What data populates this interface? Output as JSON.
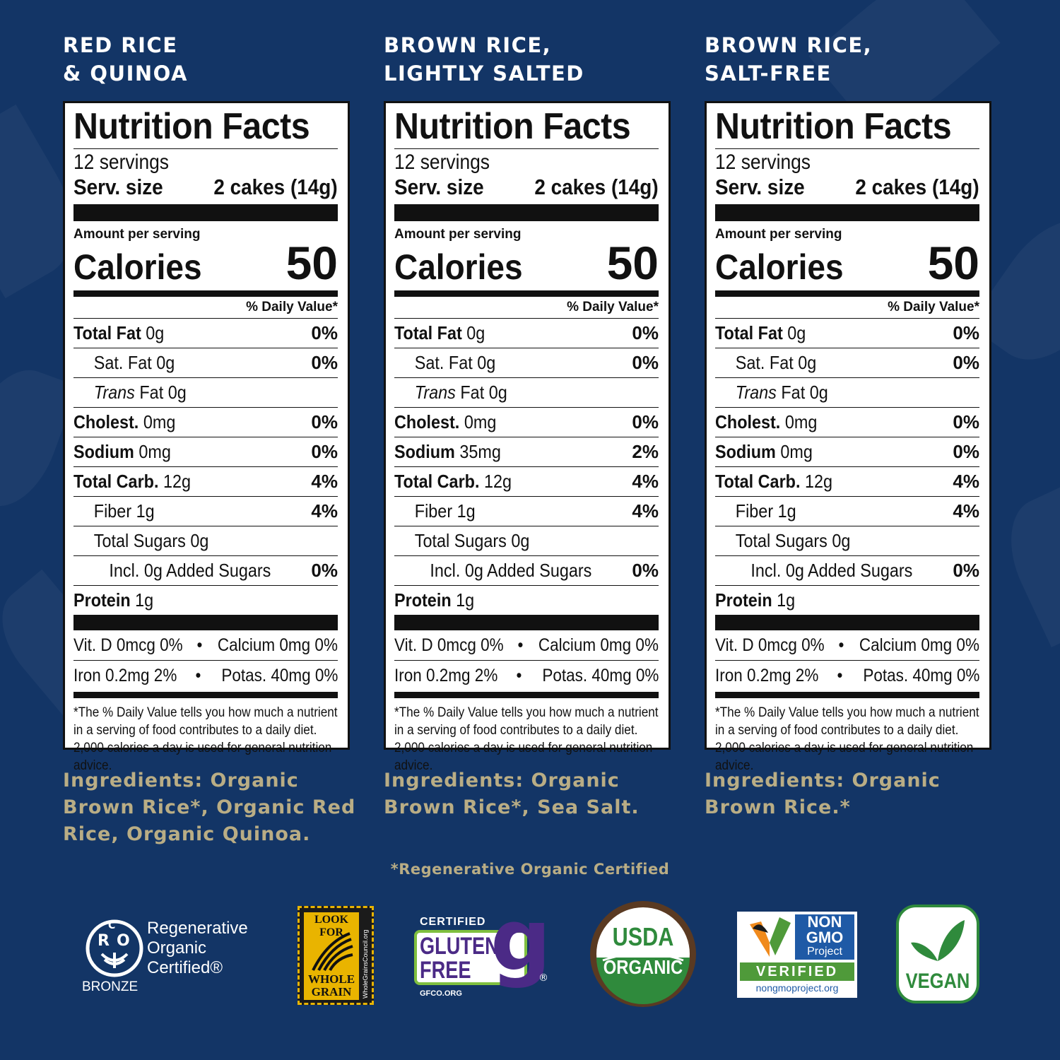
{
  "footnote": "*Regenerative Organic Certified",
  "labels": [
    {
      "title": "RED RICE\n& QUINOA",
      "ingredients": "Ingredients: Organic Brown Rice*, Organic Red Rice, Organic Quinoa.",
      "sodium": "0mg",
      "sodium_dv": "0%"
    },
    {
      "title": "BROWN RICE,\nLIGHTLY SALTED",
      "ingredients": "Ingredients: Organic Brown Rice*, Sea Salt.",
      "sodium": "35mg",
      "sodium_dv": "2%"
    },
    {
      "title": "BROWN RICE,\nSALT-FREE",
      "ingredients": "Ingredients: Organic Brown Rice.*",
      "sodium": "0mg",
      "sodium_dv": "0%"
    }
  ],
  "nutrition": {
    "heading": "Nutrition Facts",
    "servings": "12 servings",
    "serv_size_label": "Serv. size",
    "serv_size_value": "2 cakes (14g)",
    "amount_per_serving": "Amount per serving",
    "calories_label": "Calories",
    "calories_value": "50",
    "dv_header": "% Daily Value*",
    "total_fat_label": "Total Fat",
    "total_fat_value": "0g",
    "total_fat_dv": "0%",
    "sat_fat": "Sat. Fat 0g",
    "sat_fat_dv": "0%",
    "trans_italic": "Trans",
    "trans_rest": "Fat 0g",
    "cholest_label": "Cholest.",
    "cholest_value": "0mg",
    "cholest_dv": "0%",
    "sodium_label": "Sodium",
    "carb_label": "Total Carb.",
    "carb_value": "12g",
    "carb_dv": "4%",
    "fiber": "Fiber 1g",
    "fiber_dv": "4%",
    "sugars": "Total Sugars 0g",
    "added_sugars": "Incl. 0g Added Sugars",
    "added_sugars_dv": "0%",
    "protein_label": "Protein",
    "protein_value": "1g",
    "vit_d": "Vit. D 0mcg 0%",
    "calcium": "Calcium 0mg 0%",
    "iron": "Iron 0.2mg 2%",
    "potas": "Potas. 40mg 0%",
    "bullet": "•",
    "footnote": "*The % Daily Value tells you how much a nutrient in a serving of food contributes to a daily diet. 2,000 calories a day is used for general nutrition advice."
  },
  "badges": {
    "roc_letters": [
      "R",
      "O",
      "C"
    ],
    "roc_lines": [
      "Regenerative",
      "Organic",
      "Certified®"
    ],
    "roc_tier": "BRONZE",
    "wg_top": "LOOK FOR",
    "wg_bottom_1": "WHOLE",
    "wg_bottom_2": "GRAIN",
    "wg_side": "WholeGrainsCouncil.org",
    "gf_certified": "CERTIFIED",
    "gf_gluten": "GLUTEN",
    "gf_free": "FREE",
    "gf_g": "g",
    "gf_reg": "®",
    "gf_site": "GFCO.ORG",
    "usda_top": "USDA",
    "usda_bottom": "ORGANIC",
    "ngmo_1": "NON",
    "ngmo_2": "GMO",
    "ngmo_3": "Project",
    "ngmo_verified": "VERIFIED",
    "ngmo_site": "nongmoproject.org",
    "vegan": "VEGAN"
  },
  "colors": {
    "background": "#133566",
    "ingredients_text": "#b9ad85",
    "usda_green": "#2f8a3c",
    "usda_brown": "#5a3a22",
    "gf_purple": "#4b2a86",
    "gf_green": "#7fbf3f",
    "ngmo_blue": "#1f5aa6",
    "ngmo_green": "#4f9a3a",
    "vegan_green": "#2f8a3c"
  }
}
